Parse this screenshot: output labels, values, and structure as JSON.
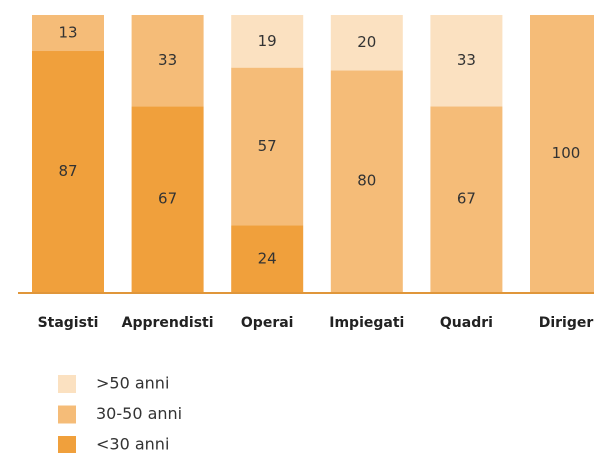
{
  "chart_data": {
    "type": "stacked_bar",
    "categories": [
      "Stagisti",
      "Apprendisti",
      "Operai",
      "Impiegati",
      "Quadri",
      "Diriger"
    ],
    "series": [
      {
        "name": "<30 anni",
        "color": "#f0a03c",
        "values": [
          87,
          67,
          24,
          null,
          null,
          null
        ]
      },
      {
        "name": "30-50 anni",
        "color": "#f5bc78",
        "values": [
          13,
          33,
          57,
          80,
          67,
          100
        ]
      },
      {
        "name": ">50 anni",
        "color": "#fbe1c1",
        "values": [
          null,
          null,
          19,
          20,
          33,
          null
        ]
      }
    ],
    "ylim": [
      0,
      100
    ]
  }
}
